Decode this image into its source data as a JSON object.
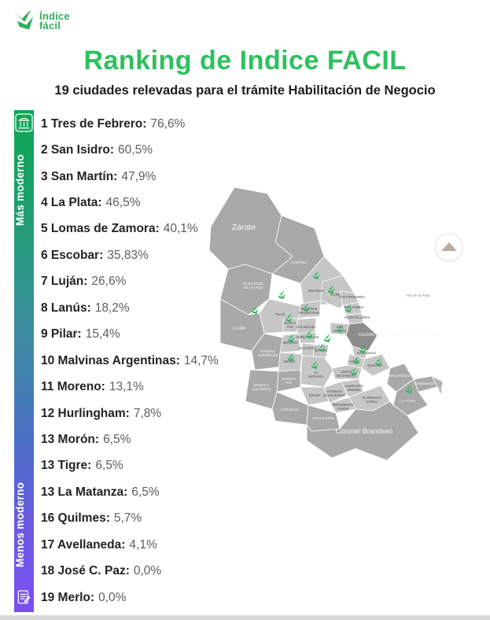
{
  "logo": {
    "name_line1": "Índice",
    "name_line2": "fácil",
    "icon": "indice-facil-bird-icon"
  },
  "header": {
    "title": "Ranking de Indice FACIL",
    "subtitle": "19 ciudades relevadas para el trámite Habilitación de Negocio"
  },
  "scale_bar": {
    "high_label": "Más moderno",
    "low_label": "Menos moderno",
    "top_icon": "government-building-icon",
    "bottom_icon": "document-pencil-icon"
  },
  "chart_data": {
    "type": "table",
    "title": "Ranking de Indice FACIL",
    "subtitle": "19 ciudades relevadas para el trámite Habilitación de Negocio",
    "value_unit": "%",
    "scale": {
      "high_label": "Más moderno",
      "low_label": "Menos moderno"
    },
    "items": [
      {
        "rank": "1",
        "city": "Tres de Febrero",
        "value": "76,6%"
      },
      {
        "rank": "2",
        "city": "San Isidro",
        "value": "60,5%"
      },
      {
        "rank": "3",
        "city": "San Martín",
        "value": "47,9%"
      },
      {
        "rank": "4",
        "city": "La Plata",
        "value": "46,5%"
      },
      {
        "rank": "5",
        "city": "Lomas de Zamora",
        "value": "40,1%"
      },
      {
        "rank": "6",
        "city": "Escobar",
        "value": "35,83%"
      },
      {
        "rank": "7",
        "city": "Luján",
        "value": "26,6%"
      },
      {
        "rank": "8",
        "city": "Lanús",
        "value": "18,2%"
      },
      {
        "rank": "9",
        "city": "Pilar",
        "value": "15,4%"
      },
      {
        "rank": "10",
        "city": "Malvinas Argentinas",
        "value": "14,7%"
      },
      {
        "rank": "11",
        "city": "Moreno",
        "value": "13,1%"
      },
      {
        "rank": "12",
        "city": "Hurlingham",
        "value": "7,8%"
      },
      {
        "rank": "13",
        "city": "Morón",
        "value": "6,5%"
      },
      {
        "rank": "13",
        "city": "Tigre",
        "value": "6,5%"
      },
      {
        "rank": "13",
        "city": "La Matanza",
        "value": "6,5%"
      },
      {
        "rank": "16",
        "city": "Quilmes",
        "value": "5,7%"
      },
      {
        "rank": "17",
        "city": "Avellaneda",
        "value": "4,1%"
      },
      {
        "rank": "18",
        "city": "José C. Paz",
        "value": "0,0%"
      },
      {
        "rank": "19",
        "city": "Merlo",
        "value": "0,0%"
      }
    ]
  },
  "map": {
    "river_label": "Río de la Plata",
    "regions": [
      "Zárate",
      "Campana",
      "Exaltación de la Cruz",
      "Escobar",
      "Pilar",
      "Luján",
      "General Rodríguez",
      "Tigre",
      "Malvinas Argentinas",
      "José C. Paz",
      "San Miguel",
      "San Fernando",
      "San Isidro",
      "Vicente López",
      "San Martín",
      "Hurlingham",
      "Moreno",
      "Ituzaingó",
      "Morón",
      "Merlo",
      "La Matanza",
      "Ciudad Autónoma de Buenos Aires",
      "Avellaneda",
      "Lanús",
      "Lomas de Zamora",
      "Quilmes",
      "Marcos Paz",
      "General Las Heras",
      "Ezeiza",
      "Esteban Echeverría",
      "Almirante Brown",
      "Presidente Perón",
      "Florencio Varela",
      "Berazategui",
      "Cañuelas",
      "San Vicente",
      "Ensenada",
      "Berisso",
      "La Plata",
      "Coronel Brandsen"
    ],
    "marker_icon": "indice-facil-bird-marker",
    "marker_cities": [
      "Tres de Febrero",
      "San Isidro",
      "San Martín",
      "La Plata",
      "Lomas de Zamora",
      "Escobar",
      "Luján",
      "Lanús",
      "Pilar",
      "Malvinas Argentinas",
      "Moreno",
      "Hurlingham",
      "Morón",
      "Tigre",
      "La Matanza",
      "Quilmes",
      "Avellaneda",
      "José C. Paz",
      "Merlo"
    ]
  },
  "floating_button": {
    "icon": "triangle-up-icon"
  },
  "colors": {
    "accent_green": "#2ec05e",
    "logo_green": "#2eb05a",
    "bar_gradient_top": "#0fa855",
    "bar_gradient_teal": "#3b8f9d",
    "bar_gradient_blue": "#4a6fc7",
    "bar_gradient_purple": "#7c4ff2",
    "value_gray": "#5d5d5d",
    "map_dark_gray": "#a9a9a9",
    "map_light_gray": "#c6c6c6",
    "map_caba_gray": "#8d8d8d",
    "marker_green": "#2db55c"
  }
}
